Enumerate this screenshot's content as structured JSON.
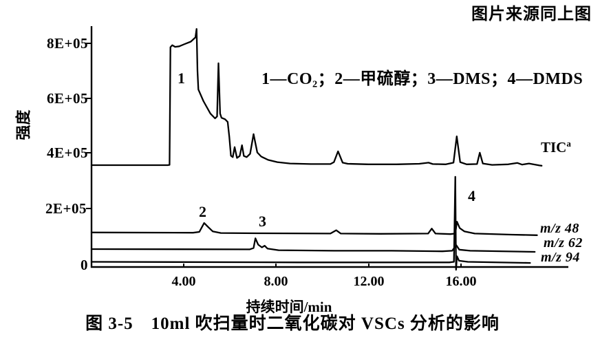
{
  "source_note": "图片来源同上图",
  "legend": {
    "text": "1—CO₂；2—甲硫醇；3—DMS；4—DMDS"
  },
  "caption": "图 3-5　10ml 吹扫量时二氧化碳对 VSCs 分析的影响",
  "y_axis": {
    "label": "强度",
    "ticks": [
      "8E+05",
      "6E+05",
      "4E+05",
      "2E+05"
    ],
    "zero": "0"
  },
  "x_axis": {
    "label": "持续时间/min",
    "ticks": [
      "4.00",
      "8.00",
      "12.00",
      "16.00"
    ]
  },
  "trace_labels": {
    "tic": "TIC",
    "tic_sup": "a",
    "mz48": "m/z 48",
    "mz62": "m/z 62",
    "mz94": "m/z 94"
  },
  "peaks": [
    "1",
    "2",
    "3",
    "4"
  ],
  "chart_data": {
    "type": "line",
    "title": "图 3-5 10ml 吹扫量时二氧化碳对 VSCs 分析的影响",
    "xlabel": "持续时间/min",
    "ylabel": "强度",
    "xlim": [
      0,
      20.7
    ],
    "ylim": [
      0,
      900000
    ],
    "x_ticks": [
      4,
      8,
      12,
      16
    ],
    "y_ticks": [
      0,
      200000,
      400000,
      600000,
      800000
    ],
    "grid": false,
    "legend_position": "inside-top",
    "peak_annotations": [
      {
        "label": "1",
        "compound": "CO₂",
        "x_min": 4.0,
        "series": "TICa"
      },
      {
        "label": "2",
        "compound": "甲硫醇",
        "x_min": 4.9,
        "series": "m/z 48"
      },
      {
        "label": "3",
        "compound": "DMS",
        "x_min": 7.1,
        "series": "m/z 62"
      },
      {
        "label": "4",
        "compound": "DMDS",
        "x_min": 15.8,
        "series": "m/z 94"
      }
    ],
    "series": [
      {
        "name": "TICa",
        "points": [
          [
            0,
            359000
          ],
          [
            3.3,
            359000
          ],
          [
            3.38,
            360000
          ],
          [
            3.42,
            785000
          ],
          [
            3.5,
            792000
          ],
          [
            3.62,
            786000
          ],
          [
            3.8,
            788000
          ],
          [
            4.0,
            795000
          ],
          [
            4.3,
            805000
          ],
          [
            4.5,
            820000
          ],
          [
            4.55,
            851000
          ],
          [
            4.59,
            700000
          ],
          [
            4.63,
            632000
          ],
          [
            4.85,
            590000
          ],
          [
            5.15,
            545000
          ],
          [
            5.35,
            528000
          ],
          [
            5.44,
            535000
          ],
          [
            5.5,
            727000
          ],
          [
            5.57,
            545000
          ],
          [
            5.63,
            530000
          ],
          [
            5.78,
            525000
          ],
          [
            5.9,
            515000
          ],
          [
            5.97,
            460000
          ],
          [
            6.04,
            393000
          ],
          [
            6.12,
            388000
          ],
          [
            6.2,
            424000
          ],
          [
            6.3,
            385000
          ],
          [
            6.42,
            392000
          ],
          [
            6.52,
            431000
          ],
          [
            6.6,
            392000
          ],
          [
            6.72,
            388000
          ],
          [
            6.87,
            400000
          ],
          [
            7.02,
            471000
          ],
          [
            7.18,
            405000
          ],
          [
            7.35,
            390000
          ],
          [
            7.65,
            378000
          ],
          [
            8.05,
            370000
          ],
          [
            8.6,
            365000
          ],
          [
            9.5,
            363000
          ],
          [
            10.35,
            363000
          ],
          [
            10.5,
            370000
          ],
          [
            10.68,
            409000
          ],
          [
            10.88,
            368000
          ],
          [
            11.1,
            364000
          ],
          [
            12.0,
            362000
          ],
          [
            13.2,
            362000
          ],
          [
            14.2,
            364000
          ],
          [
            14.6,
            368000
          ],
          [
            14.78,
            363000
          ],
          [
            15.35,
            362000
          ],
          [
            15.68,
            368000
          ],
          [
            15.82,
            463000
          ],
          [
            15.97,
            370000
          ],
          [
            16.25,
            362000
          ],
          [
            16.7,
            363000
          ],
          [
            16.82,
            404000
          ],
          [
            16.95,
            365000
          ],
          [
            17.35,
            360000
          ],
          [
            18.05,
            362000
          ],
          [
            18.45,
            367000
          ],
          [
            18.65,
            361000
          ],
          [
            18.95,
            365000
          ],
          [
            19.4,
            358000
          ],
          [
            19.5,
            357000
          ]
        ]
      },
      {
        "name": "m/z 48",
        "points": [
          [
            0,
            116000
          ],
          [
            4.4,
            115000
          ],
          [
            4.67,
            118000
          ],
          [
            4.88,
            150000
          ],
          [
            5.05,
            136000
          ],
          [
            5.25,
            120000
          ],
          [
            5.6,
            114000
          ],
          [
            7.2,
            113000
          ],
          [
            10.35,
            112000
          ],
          [
            10.6,
            124000
          ],
          [
            10.8,
            112000
          ],
          [
            12.5,
            111000
          ],
          [
            14.58,
            112000
          ],
          [
            14.74,
            130000
          ],
          [
            14.9,
            112000
          ],
          [
            15.55,
            110000
          ],
          [
            15.76,
            112000
          ],
          [
            15.83,
            155000
          ],
          [
            15.95,
            132000
          ],
          [
            16.15,
            120000
          ],
          [
            16.6,
            112000
          ],
          [
            18.2,
            108000
          ],
          [
            19.3,
            106000
          ]
        ]
      },
      {
        "name": "m/z 62",
        "points": [
          [
            0,
            56000
          ],
          [
            6.85,
            55000
          ],
          [
            7.02,
            60000
          ],
          [
            7.1,
            95000
          ],
          [
            7.22,
            72000
          ],
          [
            7.38,
            62000
          ],
          [
            7.5,
            68000
          ],
          [
            7.62,
            58000
          ],
          [
            8.1,
            52000
          ],
          [
            10.5,
            50000
          ],
          [
            13.0,
            50000
          ],
          [
            15.2,
            48000
          ],
          [
            15.62,
            50000
          ],
          [
            15.8,
            70000
          ],
          [
            15.93,
            54000
          ],
          [
            16.4,
            50000
          ],
          [
            19.2,
            46000
          ]
        ]
      },
      {
        "name": "m/z 94",
        "points": [
          [
            0,
            10000
          ],
          [
            9.0,
            8000
          ],
          [
            15.5,
            8000
          ],
          [
            15.7,
            10000
          ],
          [
            15.76,
            317000
          ],
          [
            15.79,
            -19000
          ],
          [
            15.83,
            30000
          ],
          [
            15.92,
            14000
          ],
          [
            16.3,
            10000
          ],
          [
            19.0,
            6000
          ]
        ]
      }
    ]
  }
}
